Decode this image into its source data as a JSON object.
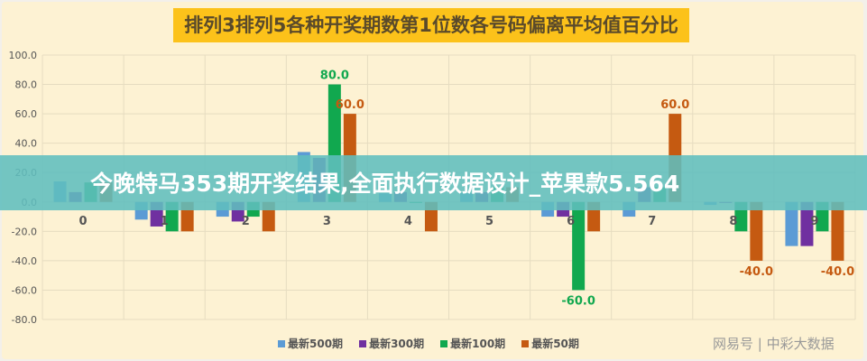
{
  "chart_data": {
    "type": "bar",
    "title": "排列3排列5各种开奖期数第1位数各号码偏离平均值百分比",
    "categories": [
      "0",
      "1",
      "2",
      "3",
      "4",
      "5",
      "6",
      "7",
      "8",
      "9"
    ],
    "ylim": [
      -80,
      100
    ],
    "yticks": [
      "100.0",
      "80.0",
      "60.0",
      "40.0",
      "20.0",
      "0.0",
      "-20.0",
      "-40.0",
      "-60.0",
      "-80.0"
    ],
    "grid": true,
    "legend_position": "bottom",
    "series": [
      {
        "name": "最新500期",
        "color": "#5b9bd5",
        "values": [
          14,
          -12,
          -10,
          34,
          6,
          6,
          -10,
          -10,
          -2,
          -30
        ]
      },
      {
        "name": "最新300期",
        "color": "#7030a0",
        "values": [
          6.7,
          -16.7,
          -13.3,
          30,
          6.7,
          6.7,
          -10,
          10,
          0,
          -30
        ]
      },
      {
        "name": "最新100期",
        "color": "#11a84f",
        "values": [
          13.3,
          -20,
          -10,
          80,
          0,
          10,
          -60,
          10,
          -20,
          -20
        ]
      },
      {
        "name": "最新50期",
        "color": "#c55a11",
        "values": [
          13.3,
          -20,
          -20,
          60,
          -20,
          10,
          -20,
          60,
          -40,
          -40
        ]
      }
    ],
    "data_labels": [
      {
        "category": "3",
        "series": "最新100期",
        "text": "80.0"
      },
      {
        "category": "3",
        "series": "最新50期",
        "text": "60.0"
      },
      {
        "category": "6",
        "series": "最新100期",
        "text": "-60.0"
      },
      {
        "category": "7",
        "series": "最新50期",
        "text": "60.0"
      },
      {
        "category": "8",
        "series": "最新50期",
        "text": "-40.0"
      },
      {
        "category": "9",
        "series": "最新50期",
        "text": "-40.0"
      }
    ]
  },
  "overlay_banner": "今晚特马353期开奖结果,全面执行数据设计_苹果款5.564",
  "watermark": "网易号 | 中彩大数据"
}
